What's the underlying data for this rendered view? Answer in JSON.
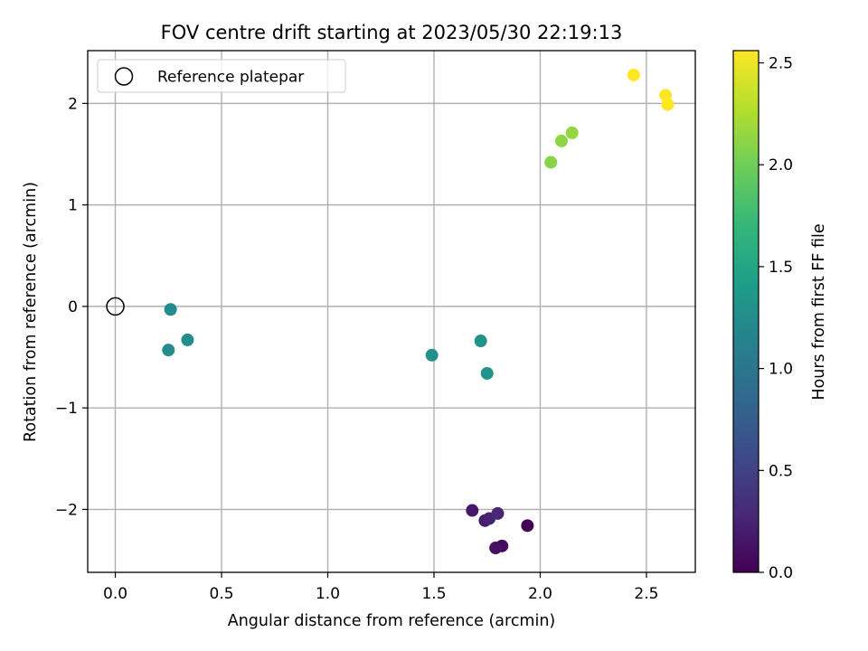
{
  "chart_data": {
    "type": "scatter",
    "title": "FOV centre drift starting at 2023/05/30 22:19:13",
    "xlabel": "Angular distance from reference (arcmin)",
    "ylabel": "Rotation from reference (arcmin)",
    "xlim": [
      -0.13,
      2.73
    ],
    "ylim": [
      -2.62,
      2.52
    ],
    "xticks": [
      0.0,
      0.5,
      1.0,
      1.5,
      2.0,
      2.5
    ],
    "xtick_labels": [
      "0.0",
      "0.5",
      "1.0",
      "1.5",
      "2.0",
      "2.5"
    ],
    "yticks": [
      -2,
      -1,
      0,
      1,
      2
    ],
    "ytick_labels": [
      "−2",
      "−1",
      "0",
      "1",
      "2"
    ],
    "grid": true,
    "colormap": "viridis",
    "colorbar": {
      "label": "Hours from first FF file",
      "range": [
        0.0,
        2.56
      ],
      "ticks": [
        0.0,
        0.5,
        1.0,
        1.5,
        2.0,
        2.5
      ],
      "tick_labels": [
        "0.0",
        "0.5",
        "1.0",
        "1.5",
        "2.0",
        "2.5"
      ]
    },
    "legend": {
      "position": "top-left",
      "entries": [
        {
          "label": "Reference platepar",
          "marker": "open-circle"
        }
      ]
    },
    "reference_point": {
      "x": 0.0,
      "y": 0.0
    },
    "points": [
      {
        "x": 1.94,
        "y": -2.16,
        "hours": 0.0
      },
      {
        "x": 1.82,
        "y": -2.36,
        "hours": 0.08
      },
      {
        "x": 1.79,
        "y": -2.38,
        "hours": 0.12
      },
      {
        "x": 1.68,
        "y": -2.01,
        "hours": 0.17
      },
      {
        "x": 1.74,
        "y": -2.11,
        "hours": 0.21
      },
      {
        "x": 1.76,
        "y": -2.09,
        "hours": 0.25
      },
      {
        "x": 1.8,
        "y": -2.04,
        "hours": 0.29
      },
      {
        "x": 0.26,
        "y": -0.03,
        "hours": 1.24
      },
      {
        "x": 0.25,
        "y": -0.43,
        "hours": 1.25
      },
      {
        "x": 0.34,
        "y": -0.33,
        "hours": 1.26
      },
      {
        "x": 1.49,
        "y": -0.48,
        "hours": 1.28
      },
      {
        "x": 1.72,
        "y": -0.34,
        "hours": 1.3
      },
      {
        "x": 1.75,
        "y": -0.66,
        "hours": 1.32
      },
      {
        "x": 2.05,
        "y": 1.42,
        "hours": 2.1
      },
      {
        "x": 2.1,
        "y": 1.63,
        "hours": 2.12
      },
      {
        "x": 2.15,
        "y": 1.71,
        "hours": 2.14
      },
      {
        "x": 2.44,
        "y": 2.28,
        "hours": 2.56
      },
      {
        "x": 2.59,
        "y": 2.08,
        "hours": 2.56
      },
      {
        "x": 2.6,
        "y": 1.99,
        "hours": 2.56
      }
    ]
  }
}
